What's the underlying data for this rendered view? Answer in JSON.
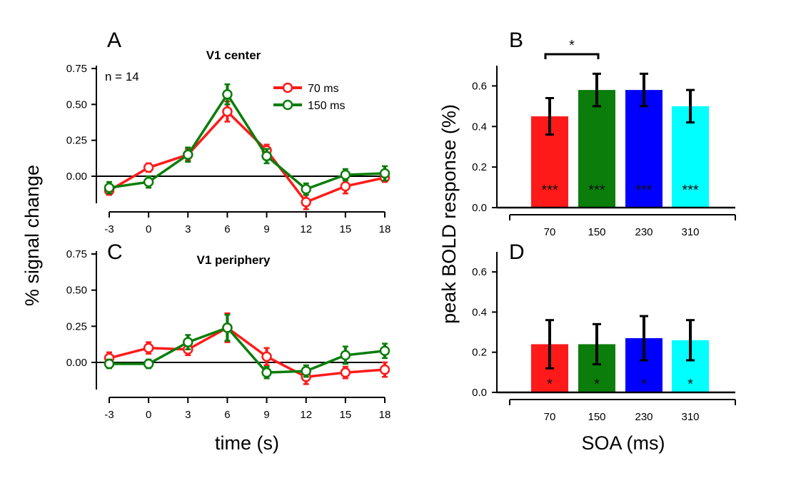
{
  "figure": {
    "ylabel_left": "% signal change",
    "xlabel_left": "time (s)",
    "ylabel_right": "peak BOLD response (%)",
    "xlabel_right": "SOA (ms)"
  },
  "colors": {
    "red": "#ff1a1a",
    "green": "#0a7d0a",
    "blue": "#0000ff",
    "cyan": "#00ffff",
    "axis": "#000000"
  },
  "chart_data": [
    {
      "id": "A",
      "panel_letter": "A",
      "type": "line",
      "title": "V1 center",
      "annotation": "n = 14",
      "x": [
        -3,
        0,
        3,
        6,
        9,
        12,
        15,
        18
      ],
      "x_tick_labels": [
        "-3",
        "0",
        "3",
        "6",
        "9",
        "12",
        "15",
        "18"
      ],
      "ylim": [
        -0.2,
        0.75
      ],
      "y_ticks": [
        0.75,
        0.5,
        0.25,
        0.0
      ],
      "y_tick_labels": [
        "0.75",
        "0.50",
        "0.25",
        "0.00"
      ],
      "legend_position": "top-right",
      "series": [
        {
          "name": "70 ms",
          "color": "#ff1a1a",
          "values": [
            -0.1,
            0.06,
            0.15,
            0.45,
            0.18,
            -0.18,
            -0.07,
            -0.01
          ],
          "errors": [
            0.03,
            0.03,
            0.04,
            0.07,
            0.04,
            0.05,
            0.05,
            0.03
          ]
        },
        {
          "name": "150 ms",
          "color": "#0a7d0a",
          "values": [
            -0.08,
            -0.04,
            0.15,
            0.57,
            0.14,
            -0.09,
            0.01,
            0.02
          ],
          "errors": [
            0.04,
            0.04,
            0.05,
            0.07,
            0.05,
            0.04,
            0.04,
            0.05
          ]
        }
      ]
    },
    {
      "id": "C",
      "panel_letter": "C",
      "type": "line",
      "title": "V1 periphery",
      "x": [
        -3,
        0,
        3,
        6,
        9,
        12,
        15,
        18
      ],
      "x_tick_labels": [
        "-3",
        "0",
        "3",
        "6",
        "9",
        "12",
        "15",
        "18"
      ],
      "ylim": [
        -0.13,
        0.75
      ],
      "y_ticks": [
        0.75,
        0.5,
        0.25,
        0.0
      ],
      "y_tick_labels": [
        "0.75",
        "0.50",
        "0.25",
        "0.00"
      ],
      "series": [
        {
          "name": "70 ms",
          "color": "#ff1a1a",
          "values": [
            0.03,
            0.1,
            0.09,
            0.24,
            0.04,
            -0.1,
            -0.07,
            -0.05
          ],
          "errors": [
            0.04,
            0.04,
            0.04,
            0.1,
            0.06,
            0.05,
            0.04,
            0.05
          ]
        },
        {
          "name": "150 ms",
          "color": "#0a7d0a",
          "values": [
            -0.01,
            -0.01,
            0.14,
            0.24,
            -0.07,
            -0.06,
            0.05,
            0.08
          ],
          "errors": [
            0.03,
            0.03,
            0.05,
            0.09,
            0.04,
            0.04,
            0.06,
            0.05
          ]
        }
      ]
    },
    {
      "id": "B",
      "panel_letter": "B",
      "type": "bar",
      "categories": [
        "70",
        "150",
        "230",
        "310"
      ],
      "values": [
        0.45,
        0.58,
        0.58,
        0.5
      ],
      "errors": [
        0.09,
        0.08,
        0.08,
        0.08
      ],
      "colors": [
        "#ff1a1a",
        "#0a7d0a",
        "#0000ff",
        "#00ffff"
      ],
      "ylim": [
        0,
        0.7
      ],
      "y_ticks": [
        0.0,
        0.2,
        0.4,
        0.6
      ],
      "y_tick_labels": [
        "0.0",
        "0.2",
        "0.4",
        "0.6"
      ],
      "bar_labels": [
        "***",
        "***",
        "***",
        "***"
      ],
      "comparison": {
        "from": 0,
        "to": 1,
        "label": "*"
      }
    },
    {
      "id": "D",
      "panel_letter": "D",
      "type": "bar",
      "categories": [
        "70",
        "150",
        "230",
        "310"
      ],
      "values": [
        0.24,
        0.24,
        0.27,
        0.26
      ],
      "errors": [
        0.12,
        0.1,
        0.11,
        0.1
      ],
      "colors": [
        "#ff1a1a",
        "#0a7d0a",
        "#0000ff",
        "#00ffff"
      ],
      "ylim": [
        0,
        0.7
      ],
      "y_ticks": [
        0.0,
        0.2,
        0.4,
        0.6
      ],
      "y_tick_labels": [
        "0.0",
        "0.2",
        "0.4",
        "0.6"
      ],
      "bar_labels": [
        "*",
        "*",
        "*",
        "*"
      ]
    }
  ]
}
